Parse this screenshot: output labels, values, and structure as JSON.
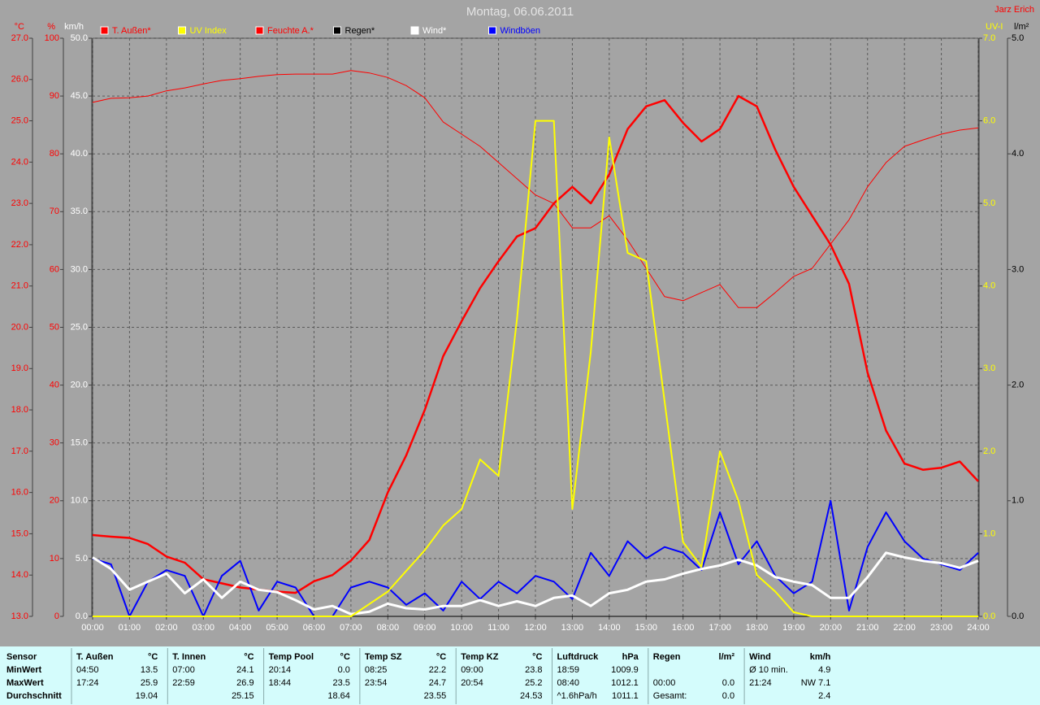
{
  "chart_data": {
    "type": "line",
    "title": "Montag, 06.06.2011",
    "author": "Jarz Erich",
    "grid": true,
    "xlim": [
      0,
      24
    ],
    "xticks": [
      {
        "value": 0,
        "label": "00:00"
      },
      {
        "value": 1,
        "label": "01:00"
      },
      {
        "value": 2,
        "label": "02:00"
      },
      {
        "value": 3,
        "label": "03:00"
      },
      {
        "value": 4,
        "label": "04:00"
      },
      {
        "value": 5,
        "label": "05:00"
      },
      {
        "value": 6,
        "label": "06:00"
      },
      {
        "value": 7,
        "label": "07:00"
      },
      {
        "value": 8,
        "label": "08:00"
      },
      {
        "value": 9,
        "label": "09:00"
      },
      {
        "value": 10,
        "label": "10:00"
      },
      {
        "value": 11,
        "label": "11:00"
      },
      {
        "value": 12,
        "label": "12:00"
      },
      {
        "value": 13,
        "label": "13:00"
      },
      {
        "value": 14,
        "label": "14:00"
      },
      {
        "value": 15,
        "label": "15:00"
      },
      {
        "value": 16,
        "label": "16:00"
      },
      {
        "value": 17,
        "label": "17:00"
      },
      {
        "value": 18,
        "label": "18:00"
      },
      {
        "value": 19,
        "label": "19:00"
      },
      {
        "value": 20,
        "label": "20:00"
      },
      {
        "value": 21,
        "label": "21:00"
      },
      {
        "value": 22,
        "label": "22:00"
      },
      {
        "value": 23,
        "label": "23:00"
      },
      {
        "value": 24,
        "label": "24:00"
      }
    ],
    "axes": [
      {
        "label": "°C",
        "color": "#ff0000",
        "lim": [
          13,
          27
        ],
        "ticks": [
          {
            "value": 13,
            "label": "13.0"
          },
          {
            "value": 14,
            "label": "14.0"
          },
          {
            "value": 15,
            "label": "15.0"
          },
          {
            "value": 16,
            "label": "16.0"
          },
          {
            "value": 17,
            "label": "17.0"
          },
          {
            "value": 18,
            "label": "18.0"
          },
          {
            "value": 19,
            "label": "19.0"
          },
          {
            "value": 20,
            "label": "20.0"
          },
          {
            "value": 21,
            "label": "21.0"
          },
          {
            "value": 22,
            "label": "22.0"
          },
          {
            "value": 23,
            "label": "23.0"
          },
          {
            "value": 24,
            "label": "24.0"
          },
          {
            "value": 25,
            "label": "25.0"
          },
          {
            "value": 26,
            "label": "26.0"
          },
          {
            "value": 27,
            "label": "27.0"
          }
        ]
      },
      {
        "label": "%",
        "color": "#ff0000",
        "lim": [
          0,
          100
        ],
        "ticks": [
          0,
          10,
          20,
          30,
          40,
          50,
          60,
          70,
          80,
          90,
          100
        ]
      },
      {
        "label": "km/h",
        "color": "#ffffff",
        "grid": true,
        "lim": [
          0,
          50
        ],
        "ticks": [
          {
            "value": 0,
            "label": "0.0"
          },
          {
            "value": 5,
            "label": "5.0"
          },
          {
            "value": 10,
            "label": "10.0"
          },
          {
            "value": 15,
            "label": "15.0"
          },
          {
            "value": 20,
            "label": "20.0"
          },
          {
            "value": 25,
            "label": "25.0"
          },
          {
            "value": 30,
            "label": "30.0"
          },
          {
            "value": 35,
            "label": "35.0"
          },
          {
            "value": 40,
            "label": "40.0"
          },
          {
            "value": 45,
            "label": "45.0"
          },
          {
            "value": 50,
            "label": "50.0"
          }
        ]
      },
      {
        "label": "UV-I",
        "color": "#ffff00",
        "lim": [
          0,
          7
        ],
        "ticks": [
          {
            "value": 0,
            "label": "0.0"
          },
          {
            "value": 1,
            "label": "1.0"
          },
          {
            "value": 2,
            "label": "2.0"
          },
          {
            "value": 3,
            "label": "3.0"
          },
          {
            "value": 4,
            "label": "4.0"
          },
          {
            "value": 5,
            "label": "5.0"
          },
          {
            "value": 6,
            "label": "6.0"
          },
          {
            "value": 7,
            "label": "7.0"
          }
        ]
      },
      {
        "label": "l/m²",
        "color": "#000000",
        "lim": [
          0,
          5
        ],
        "ticks": [
          {
            "value": 0,
            "label": "0.0"
          },
          {
            "value": 1,
            "label": "1.0"
          },
          {
            "value": 2,
            "label": "2.0"
          },
          {
            "value": 3,
            "label": "3.0"
          },
          {
            "value": 4,
            "label": "4.0"
          },
          {
            "value": 5,
            "label": "5.0"
          }
        ]
      }
    ],
    "x": [
      0,
      0.5,
      1,
      1.5,
      2,
      2.5,
      3,
      3.5,
      4,
      4.5,
      5,
      5.5,
      6,
      6.5,
      7,
      7.5,
      8,
      8.5,
      9,
      9.5,
      10,
      10.5,
      11,
      11.5,
      12,
      12.5,
      13,
      13.5,
      14,
      14.5,
      15,
      15.5,
      16,
      16.5,
      17,
      17.5,
      18,
      18.5,
      19,
      19.5,
      20,
      20.5,
      21,
      21.5,
      22,
      22.5,
      23,
      23.5,
      24
    ],
    "series": [
      {
        "name": "T. Außen*",
        "color": "#ff0000",
        "axis": "°C",
        "width": 2.5,
        "values": [
          14.97,
          14.93,
          14.9,
          14.75,
          14.45,
          14.3,
          13.9,
          13.8,
          13.7,
          13.65,
          13.6,
          13.57,
          13.85,
          14.0,
          14.35,
          14.85,
          16.0,
          16.9,
          18.0,
          19.3,
          20.15,
          20.95,
          21.6,
          22.2,
          22.4,
          23.0,
          23.4,
          23.0,
          23.7,
          24.8,
          25.35,
          25.5,
          24.95,
          24.5,
          24.8,
          25.6,
          25.35,
          24.3,
          23.4,
          22.7,
          22.0,
          21.05,
          18.9,
          17.5,
          16.7,
          16.55,
          16.6,
          16.75,
          16.27
        ]
      },
      {
        "name": "UV Index",
        "color": "#ffff00",
        "axis": "UV-I",
        "width": 2,
        "values": [
          0,
          0,
          0,
          0,
          0,
          0,
          0,
          0,
          0,
          0,
          0,
          0,
          0,
          0,
          0,
          0.15,
          0.3,
          0.55,
          0.8,
          1.1,
          1.3,
          1.9,
          1.7,
          3.6,
          6.0,
          6.0,
          1.3,
          3.2,
          5.8,
          4.4,
          4.3,
          2.6,
          0.9,
          0.6,
          2.0,
          1.4,
          0.5,
          0.3,
          0.05,
          0,
          0,
          0,
          0,
          0,
          0,
          0,
          0,
          0,
          0
        ]
      },
      {
        "name": "Feuchte A.*",
        "color": "#ff0000",
        "axis": "%",
        "width": 1,
        "values": [
          88.9,
          89.6,
          89.7,
          90.0,
          90.9,
          91.4,
          92.1,
          92.7,
          93.0,
          93.4,
          93.7,
          93.8,
          93.8,
          93.8,
          94.4,
          94.0,
          93.2,
          91.8,
          89.7,
          85.5,
          83.4,
          81.3,
          78.5,
          75.7,
          72.9,
          71.4,
          67.2,
          67.2,
          69.3,
          65.1,
          60.2,
          55.3,
          54.6,
          56.0,
          57.4,
          53.4,
          53.4,
          56.0,
          58.8,
          60.2,
          64.4,
          68.6,
          74.3,
          78.5,
          81.3,
          82.4,
          83.4,
          84.1,
          84.5
        ]
      },
      {
        "name": "Regen*",
        "color": "#000000",
        "axis": "l/m²",
        "width": 1,
        "values": [
          0,
          0,
          0,
          0,
          0,
          0,
          0,
          0,
          0,
          0,
          0,
          0,
          0,
          0,
          0,
          0,
          0,
          0,
          0,
          0,
          0,
          0,
          0,
          0,
          0,
          0,
          0,
          0,
          0,
          0,
          0,
          0,
          0,
          0,
          0,
          0,
          0,
          0,
          0,
          0,
          0,
          0,
          0,
          0,
          0,
          0,
          0,
          0,
          0
        ]
      },
      {
        "name": "Wind*",
        "color": "#ffffff",
        "axis": "km/h",
        "width": 3,
        "values": [
          5.1,
          4.1,
          2.3,
          3.0,
          3.7,
          2.0,
          3.2,
          1.6,
          3.0,
          2.3,
          2.1,
          1.4,
          0.6,
          0.9,
          0.2,
          0.4,
          1.1,
          0.7,
          0.6,
          0.9,
          0.9,
          1.4,
          0.9,
          1.3,
          0.9,
          1.6,
          1.8,
          0.9,
          2.0,
          2.3,
          3.0,
          3.2,
          3.7,
          4.1,
          4.4,
          4.9,
          4.4,
          3.4,
          3.0,
          2.7,
          1.6,
          1.6,
          3.4,
          5.5,
          5.1,
          4.8,
          4.6,
          4.2,
          4.8
        ]
      },
      {
        "name": "Windböen",
        "color": "#0000ff",
        "axis": "km/h",
        "width": 2,
        "values": [
          5.0,
          4.5,
          0,
          3.0,
          4.0,
          3.5,
          0,
          3.5,
          4.8,
          0.5,
          3.0,
          2.5,
          0,
          0,
          2.5,
          3.0,
          2.5,
          1.0,
          2.0,
          0.5,
          3.0,
          1.5,
          3.0,
          2.0,
          3.5,
          3.0,
          1.5,
          5.5,
          3.5,
          6.5,
          5.0,
          6.0,
          5.5,
          4.0,
          9.0,
          4.5,
          6.5,
          3.5,
          2.0,
          3.0,
          10.0,
          0.5,
          6.0,
          9.0,
          6.5,
          5.0,
          4.5,
          4.0,
          5.5
        ]
      }
    ]
  },
  "table": {
    "sensor_header": "Sensor",
    "row_labels": [
      "MinWert",
      "MaxWert",
      "Durchschnitt"
    ],
    "groups": [
      {
        "name": "T. Außen",
        "unit": "°C",
        "rows": [
          [
            "04:50",
            "13.5"
          ],
          [
            "17:24",
            "25.9"
          ],
          [
            null,
            "19.04"
          ]
        ]
      },
      {
        "name": "T. Innen",
        "unit": "°C",
        "rows": [
          [
            "07:00",
            "24.1"
          ],
          [
            "22:59",
            "26.9"
          ],
          [
            null,
            "25.15"
          ]
        ]
      },
      {
        "name": "Temp Pool",
        "unit": "°C",
        "rows": [
          [
            "20:14",
            "0.0"
          ],
          [
            "18:44",
            "23.5"
          ],
          [
            null,
            "18.64"
          ]
        ]
      },
      {
        "name": "Temp SZ",
        "unit": "°C",
        "rows": [
          [
            "08:25",
            "22.2"
          ],
          [
            "23:54",
            "24.7"
          ],
          [
            null,
            "23.55"
          ]
        ]
      },
      {
        "name": "Temp KZ",
        "unit": "°C",
        "rows": [
          [
            "09:00",
            "23.8"
          ],
          [
            "20:54",
            "25.2"
          ],
          [
            null,
            "24.53"
          ]
        ]
      },
      {
        "name": "Luftdruck",
        "unit": "hPa",
        "rows": [
          [
            "18:59",
            "1009.9"
          ],
          [
            "08:40",
            "1012.1"
          ],
          [
            "^1.6hPa/h",
            "1011.1"
          ]
        ]
      },
      {
        "name": "Regen",
        "unit": "l/m²",
        "rows": [
          [
            null,
            null
          ],
          [
            "00:00",
            "0.0"
          ],
          [
            "Gesamt:",
            "0.0"
          ]
        ]
      },
      {
        "name": "Wind",
        "unit": "km/h",
        "rows": [
          [
            "Ø 10 min.",
            "4.9"
          ],
          [
            "21:24",
            "NW 7.1"
          ],
          [
            null,
            "2.4"
          ]
        ]
      }
    ]
  }
}
